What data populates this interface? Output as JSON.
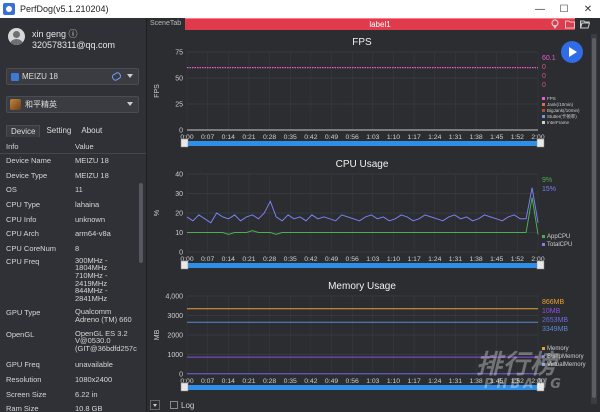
{
  "window": {
    "title": "PerfDog(v5.1.210204)",
    "minimize": "—",
    "maximize": "☐",
    "close": "✕"
  },
  "user": {
    "name": "xin geng ⓘ",
    "email": "320578311@qq.com"
  },
  "device": {
    "selected": "MEIZU 18"
  },
  "app": {
    "selected": "和平精英"
  },
  "tabs": [
    "Device",
    "Setting",
    "About"
  ],
  "info": {
    "header_key": "Info",
    "header_value": "Value",
    "rows": [
      {
        "k": "Device Name",
        "v": "MEIZU 18"
      },
      {
        "k": "Device Type",
        "v": "MEIZU 18"
      },
      {
        "k": "OS",
        "v": "11"
      },
      {
        "k": "CPU Type",
        "v": "lahaina"
      },
      {
        "k": "CPU Info",
        "v": "unknown"
      },
      {
        "k": "CPU Arch",
        "v": "arm64-v8a"
      },
      {
        "k": "CPU CoreNum",
        "v": "8"
      },
      {
        "k": "CPU Freq",
        "v": [
          "300MHz -",
          "1804MHz",
          "710MHz -",
          "2419MHz",
          "844MHz -",
          "2841MHz"
        ]
      },
      {
        "k": "GPU Type",
        "v": [
          "Qualcomm",
          "Adreno (TM) 660"
        ]
      },
      {
        "k": "OpenGL",
        "v": [
          "OpenGL ES 3.2",
          "V@0530.0",
          "(GIT@36bdfd257c"
        ]
      },
      {
        "k": "GPU Freq",
        "v": "unavailable"
      },
      {
        "k": "Resolution",
        "v": "1080x2400"
      },
      {
        "k": "Screen Size",
        "v": "6.22 in"
      },
      {
        "k": "Ram Size",
        "v": "10.8 GB"
      }
    ]
  },
  "main": {
    "scene_tab": "SceneTab",
    "label": "label1",
    "log_label": "Log"
  },
  "watermark": {
    "text": "排行榜",
    "sub": "PHBANG"
  },
  "colors": {
    "fps": "#e85ad8",
    "cpu_app": "#4caf50",
    "cpu_total": "#7b7ff0",
    "mem": "#f0a030",
    "swap": "#6a6ae0",
    "virtual": "#5a88d6",
    "label_bar": "#e03a4d",
    "accent": "#2f6ce5",
    "slider": "#2f8fe8"
  },
  "chart_data": [
    {
      "type": "line",
      "title": "FPS",
      "ylabel": "FPS",
      "ylim": [
        0,
        75
      ],
      "yticks": [
        0,
        25,
        50,
        75
      ],
      "xticks": [
        "0:00",
        "0:07",
        "0:14",
        "0:21",
        "0:28",
        "0:35",
        "0:42",
        "0:49",
        "0:56",
        "1:03",
        "1:10",
        "1:17",
        "1:24",
        "1:31",
        "1:38",
        "1:45",
        "1:52",
        "2:00"
      ],
      "current_values": [
        "60.1",
        "0",
        "0",
        "0"
      ],
      "legend": [
        "FPS",
        "Jank(/10min)",
        "BigJank(/10min)",
        "Stutter(卡顿率)",
        "InterFrame"
      ],
      "series": [
        {
          "name": "FPS",
          "values": [
            60,
            60,
            60,
            60,
            60,
            60,
            60,
            60,
            60,
            60,
            60,
            60,
            60,
            60,
            60,
            60,
            60,
            60,
            60,
            60,
            60,
            60,
            60,
            60,
            60,
            60,
            60,
            60,
            60,
            60,
            60,
            60,
            60,
            60,
            60,
            60,
            60,
            60,
            60,
            60,
            60,
            60,
            60,
            60,
            60,
            60,
            60,
            60,
            60,
            60,
            60,
            60,
            60,
            60,
            60,
            60,
            60,
            60,
            60,
            60
          ]
        },
        {
          "name": "Jank(/10min)",
          "values": [
            0,
            0
          ]
        }
      ]
    },
    {
      "type": "line",
      "title": "CPU Usage",
      "ylabel": "%",
      "ylim": [
        0,
        40
      ],
      "yticks": [
        0,
        10,
        20,
        30,
        40
      ],
      "xticks": [
        "0:00",
        "0:07",
        "0:14",
        "0:21",
        "0:28",
        "0:35",
        "0:42",
        "0:49",
        "0:56",
        "1:03",
        "1:10",
        "1:17",
        "1:24",
        "1:31",
        "1:38",
        "1:45",
        "1:52",
        "2:00"
      ],
      "current_values": [
        "9%",
        "15%"
      ],
      "legend": [
        "AppCPU",
        "TotalCPU"
      ],
      "series": [
        {
          "name": "AppCPU",
          "values": [
            10,
            10,
            10,
            10,
            10,
            10,
            10,
            9,
            10,
            10,
            10,
            11,
            10,
            10,
            10,
            9,
            10,
            10,
            10,
            10,
            10,
            10,
            10,
            10,
            10,
            10,
            10,
            10,
            10,
            10,
            10,
            10,
            10,
            10,
            10,
            10,
            10,
            10,
            10,
            10,
            10,
            10,
            10,
            10,
            10,
            10,
            10,
            10,
            10,
            10,
            10,
            10,
            10,
            10,
            10,
            10,
            10,
            10,
            28,
            9
          ]
        },
        {
          "name": "TotalCPU",
          "values": [
            18,
            16,
            19,
            17,
            15,
            20,
            18,
            17,
            19,
            16,
            18,
            19,
            17,
            20,
            26,
            18,
            16,
            19,
            17,
            18,
            16,
            19,
            17,
            18,
            17,
            16,
            19,
            18,
            17,
            16,
            18,
            19,
            17,
            18,
            16,
            17,
            19,
            18,
            16,
            17,
            19,
            18,
            17,
            16,
            18,
            19,
            17,
            18,
            16,
            17,
            19,
            18,
            17,
            16,
            18,
            19,
            17,
            17,
            33,
            15
          ]
        }
      ]
    },
    {
      "type": "line",
      "title": "Memory Usage",
      "ylabel": "MB",
      "ylim": [
        0,
        4000
      ],
      "yticks": [
        0,
        1000,
        2000,
        3000,
        "4,000"
      ],
      "xticks": [
        "0:00",
        "0:07",
        "0:14",
        "0:21",
        "0:28",
        "0:35",
        "0:42",
        "0:49",
        "0:56",
        "1:03",
        "1:10",
        "1:17",
        "1:24",
        "1:31",
        "1:38",
        "1:45",
        "1:52",
        "2:00"
      ],
      "current_values": [
        "866MB",
        "10MB",
        "2653MB",
        "3349MB"
      ],
      "legend": [
        "Memory",
        "SwapMemory",
        "VirtualMemory"
      ],
      "series": [
        {
          "name": "Memory",
          "values": [
            3350,
            3350,
            3350,
            3350,
            3350,
            3350,
            3350,
            3350,
            3350,
            3350,
            3349
          ]
        },
        {
          "name": "866MB",
          "values": [
            866,
            866,
            866,
            866,
            866,
            866,
            866,
            866,
            866,
            866,
            866
          ]
        },
        {
          "name": "SwapMemory",
          "values": [
            10,
            10,
            10,
            10,
            10,
            10,
            10,
            10,
            10,
            10,
            10
          ]
        },
        {
          "name": "VirtualMemory",
          "values": [
            2653,
            2653,
            2653,
            2653,
            2653,
            2653,
            2653,
            2653,
            2653,
            2653,
            2653
          ]
        }
      ]
    }
  ]
}
